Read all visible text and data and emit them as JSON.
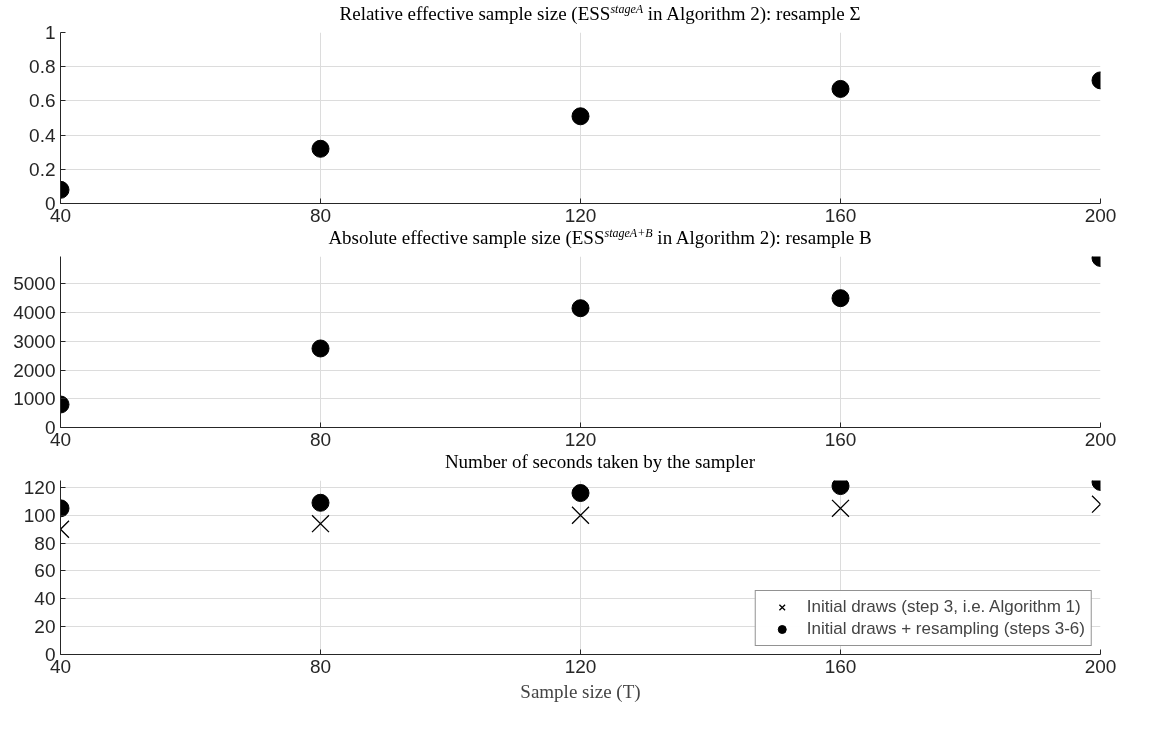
{
  "chart_data": [
    {
      "type": "scatter",
      "title": "Relative effective sample size (ESS$^{stageA}$ in Algorithm 2): resample Σ",
      "x": [
        40,
        80,
        120,
        160,
        200
      ],
      "xlim": [
        40,
        200
      ],
      "xticks": [
        40,
        80,
        120,
        160,
        200
      ],
      "ylim": [
        0,
        1
      ],
      "yticks": [
        0,
        0.2,
        0.4,
        0.6,
        0.8,
        1
      ],
      "grid": true,
      "legend": false,
      "series": [
        {
          "color": "#000000",
          "marker": "circle",
          "values": [
            0.08,
            0.32,
            0.51,
            0.67,
            0.72
          ]
        }
      ]
    },
    {
      "type": "scatter",
      "title": "Absolute effective sample size (ESS$^{stageA+B}$ in Algorithm 2): resample B",
      "x": [
        40,
        80,
        120,
        160,
        200
      ],
      "xlim": [
        40,
        200
      ],
      "xticks": [
        40,
        80,
        120,
        160,
        200
      ],
      "ylim": [
        0,
        5950
      ],
      "yticks": [
        0,
        1000,
        2000,
        3000,
        4000,
        5000
      ],
      "grid": true,
      "legend": false,
      "series": [
        {
          "color": "#000000",
          "marker": "circle",
          "values": [
            800,
            2750,
            4150,
            4500,
            5900
          ]
        }
      ]
    },
    {
      "type": "scatter",
      "title": "Number of seconds taken by the sampler",
      "xlabel": "Sample size (T)",
      "x": [
        40,
        80,
        120,
        160,
        200
      ],
      "xlim": [
        40,
        200
      ],
      "xticks": [
        40,
        80,
        120,
        160,
        200
      ],
      "ylim": [
        0,
        125
      ],
      "yticks": [
        0,
        20,
        40,
        60,
        80,
        100,
        120
      ],
      "grid": true,
      "legend": "bottom right",
      "series": [
        {
          "name": "Initial draws (step 3, i.e. Algorithm 1)",
          "color": "#000000",
          "marker": "cross",
          "values": [
            90,
            94,
            100,
            105,
            108
          ]
        },
        {
          "name": "Initial draws + resampling (steps 3-6)",
          "color": "#000000",
          "marker": "circle",
          "values": [
            105,
            109,
            116,
            121,
            124
          ]
        }
      ]
    }
  ]
}
